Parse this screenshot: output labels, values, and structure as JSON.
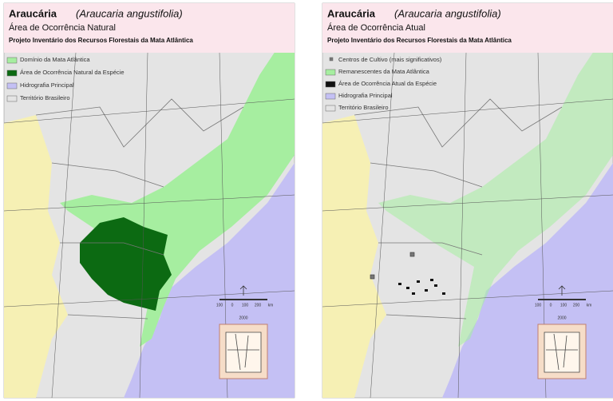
{
  "panels": [
    {
      "name": "Araucária",
      "scientific_name": "(Araucaria angustifolia)",
      "subtitle": "Área de Ocorrência Natural",
      "project": "Projeto Inventário dos Recursos Florestais da Mata Atlântica",
      "legend": [
        {
          "label": "Domínio da Mata Atlântica",
          "color": "#a6eea0"
        },
        {
          "label": "Área de Ocorrência Natural da Espécie",
          "color": "#0c6a12"
        },
        {
          "label": "Hidrografia Principal",
          "color": "#c4c0f4"
        },
        {
          "label": "Território Brasileiro",
          "color": "#e4e4e4"
        }
      ],
      "scale": [
        "100",
        "0",
        "100",
        "200",
        "km"
      ],
      "year": "2000"
    },
    {
      "name": "Araucária",
      "scientific_name": "(Araucaria angustifolia)",
      "subtitle": "Área de Ocorrência Atual",
      "project": "Projeto Inventário dos Recursos Florestais da Mata Atlântica",
      "legend": [
        {
          "label": "Centros de Cultivo (mais significativos)",
          "color": "#777777"
        },
        {
          "label": "Remanescentes da Mata Atlântica",
          "color": "#a6eea0"
        },
        {
          "label": "Área de Ocorrência Atual da Espécie",
          "color": "#111111"
        },
        {
          "label": "Hidrografia Principal",
          "color": "#c4c0f4"
        },
        {
          "label": "Território Brasileiro",
          "color": "#e4e4e4"
        }
      ],
      "scale": [
        "100",
        "0",
        "100",
        "200",
        "km"
      ],
      "year": "2000"
    }
  ]
}
